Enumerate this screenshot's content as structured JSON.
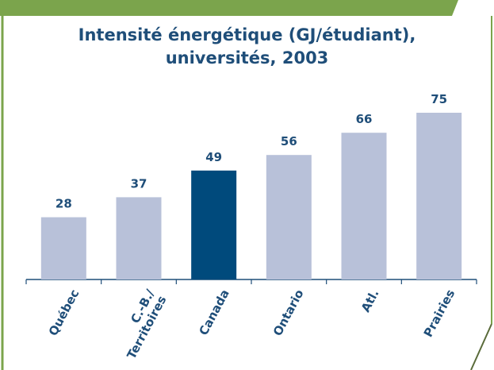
{
  "chart_data": {
    "type": "bar",
    "title": "Intensité énergétique (GJ/étudiant),\nuniversités, 2003",
    "categories": [
      "Québec",
      "C.-B./\nTerritoires",
      "Canada",
      "Ontario",
      "Atl.",
      "Prairies"
    ],
    "values": [
      28,
      37,
      49,
      56,
      66,
      75
    ],
    "colors": [
      "#b8c1d9",
      "#b8c1d9",
      "#004a7c",
      "#b8c1d9",
      "#b8c1d9",
      "#b8c1d9"
    ]
  }
}
